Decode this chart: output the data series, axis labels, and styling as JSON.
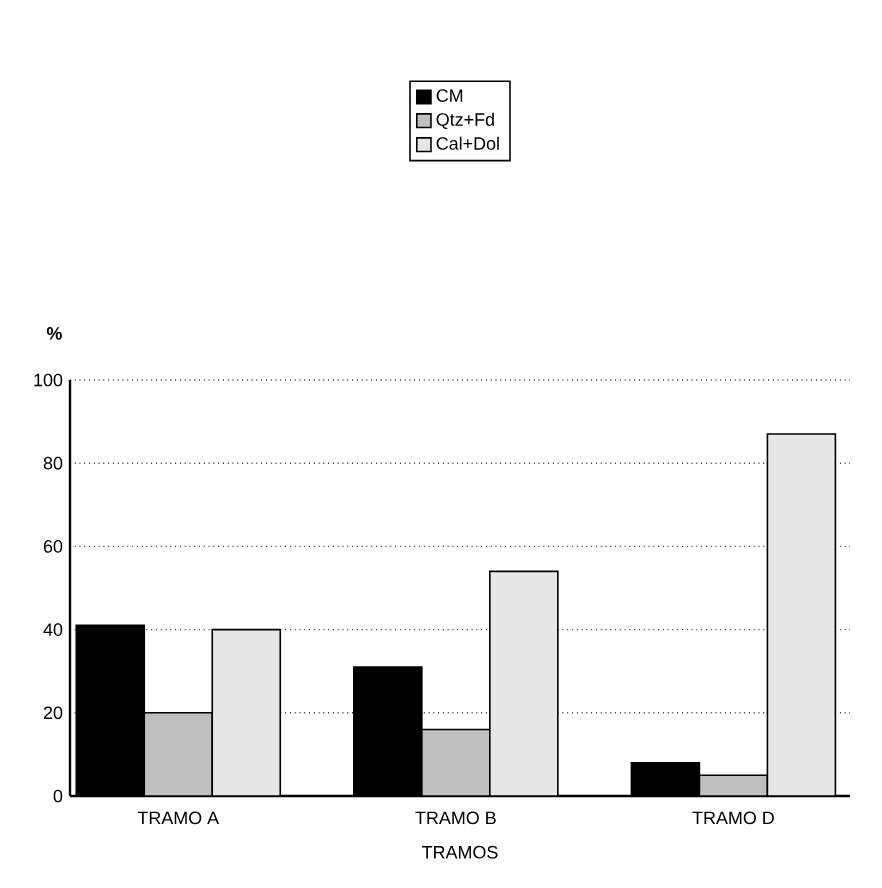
{
  "chart_data": {
    "type": "bar",
    "ylabel": "%",
    "xlabel": "TRAMOS",
    "categories": [
      "TRAMO A",
      "TRAMO B",
      "TRAMO D"
    ],
    "series": [
      {
        "name": "CM",
        "color": "#000000",
        "values": [
          41,
          31,
          8
        ]
      },
      {
        "name": "Qtz+Fd",
        "color": "#bfbfbf",
        "values": [
          20,
          16,
          5
        ]
      },
      {
        "name": "Cal+Dol",
        "color": "#e6e6e6",
        "values": [
          40,
          54,
          87
        ]
      }
    ],
    "ylim": [
      0,
      100
    ],
    "yticks": [
      0,
      20,
      40,
      60,
      80,
      100
    ],
    "grid": "y",
    "legend": "top"
  }
}
